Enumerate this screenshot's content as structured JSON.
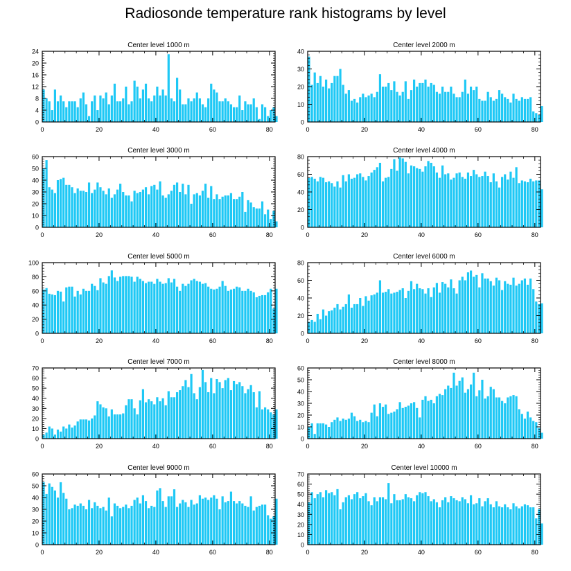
{
  "figure_title": "Radiosonde temperature rank histograms by level",
  "bar_color": "#1ec8f5",
  "chart_data": [
    {
      "type": "bar",
      "title": "Center level 1000 m",
      "xlim": [
        0,
        82
      ],
      "ylim": [
        0,
        24
      ],
      "xticks": [
        0,
        20,
        40,
        60,
        80
      ],
      "yticks": [
        0,
        4,
        8,
        12,
        16,
        20,
        24
      ],
      "values": [
        11,
        8,
        7,
        4,
        11,
        7,
        9,
        7,
        5,
        7,
        7,
        7,
        5,
        8,
        10,
        6,
        2,
        7,
        9,
        4,
        9,
        8,
        10,
        6,
        9,
        13,
        7,
        7,
        8,
        12,
        6,
        7,
        14,
        12,
        8,
        11,
        13,
        8,
        7,
        9,
        12,
        9,
        11,
        9,
        23,
        8,
        7,
        15,
        11,
        6,
        6,
        8,
        7,
        8,
        10,
        8,
        6,
        5,
        8,
        13,
        11,
        10,
        7,
        7,
        8,
        7,
        6,
        5,
        5,
        9,
        4,
        7,
        6,
        6,
        8,
        5,
        1,
        6,
        5,
        2,
        4,
        5,
        2
      ]
    },
    {
      "type": "bar",
      "title": "Center level 2000 m",
      "xlim": [
        0,
        82
      ],
      "ylim": [
        0,
        40
      ],
      "xticks": [
        0,
        20,
        40,
        60,
        80
      ],
      "yticks": [
        0,
        10,
        20,
        30,
        40
      ],
      "values": [
        37,
        21,
        28,
        22,
        26,
        20,
        24,
        19,
        22,
        26,
        26,
        30,
        21,
        16,
        18,
        12,
        13,
        11,
        14,
        16,
        14,
        15,
        16,
        14,
        17,
        27,
        20,
        20,
        22,
        18,
        23,
        17,
        15,
        17,
        23,
        13,
        18,
        24,
        20,
        22,
        22,
        24,
        20,
        22,
        21,
        17,
        16,
        20,
        17,
        17,
        20,
        16,
        14,
        14,
        17,
        24,
        16,
        20,
        18,
        20,
        13,
        12,
        12,
        17,
        14,
        12,
        13,
        18,
        16,
        14,
        13,
        11,
        16,
        13,
        12,
        14,
        13,
        13,
        14,
        6,
        5,
        4,
        9
      ]
    },
    {
      "type": "bar",
      "title": "Center level 3000 m",
      "xlim": [
        0,
        82
      ],
      "ylim": [
        0,
        60
      ],
      "xticks": [
        0,
        20,
        40,
        60,
        80
      ],
      "yticks": [
        0,
        10,
        20,
        30,
        40,
        50,
        60
      ],
      "values": [
        50,
        57,
        34,
        32,
        29,
        40,
        41,
        42,
        36,
        36,
        34,
        29,
        33,
        31,
        31,
        30,
        38,
        29,
        32,
        38,
        34,
        31,
        28,
        33,
        25,
        28,
        32,
        37,
        30,
        27,
        27,
        22,
        31,
        29,
        30,
        32,
        34,
        28,
        35,
        36,
        32,
        39,
        27,
        25,
        28,
        31,
        36,
        38,
        30,
        37,
        28,
        36,
        20,
        28,
        29,
        27,
        31,
        37,
        25,
        35,
        24,
        28,
        24,
        26,
        27,
        27,
        29,
        24,
        24,
        26,
        30,
        13,
        23,
        21,
        17,
        16,
        16,
        22,
        11,
        15,
        7,
        14,
        5
      ]
    },
    {
      "type": "bar",
      "title": "Center level 4000 m",
      "xlim": [
        0,
        82
      ],
      "ylim": [
        0,
        80
      ],
      "xticks": [
        0,
        20,
        40,
        60,
        80
      ],
      "yticks": [
        0,
        20,
        40,
        60,
        80
      ],
      "values": [
        56,
        57,
        55,
        52,
        57,
        56,
        51,
        52,
        50,
        46,
        52,
        45,
        59,
        52,
        60,
        55,
        56,
        60,
        61,
        57,
        53,
        58,
        62,
        65,
        68,
        73,
        52,
        56,
        57,
        66,
        77,
        64,
        79,
        78,
        74,
        61,
        70,
        69,
        67,
        66,
        63,
        69,
        75,
        73,
        69,
        62,
        56,
        70,
        60,
        61,
        54,
        56,
        61,
        62,
        57,
        55,
        62,
        58,
        65,
        60,
        57,
        58,
        63,
        58,
        51,
        61,
        52,
        45,
        57,
        60,
        54,
        63,
        56,
        68,
        50,
        53,
        52,
        51,
        55,
        52,
        53,
        53,
        43
      ]
    },
    {
      "type": "bar",
      "title": "Center level 5000 m",
      "xlim": [
        0,
        82
      ],
      "ylim": [
        0,
        100
      ],
      "xticks": [
        0,
        20,
        40,
        60,
        80
      ],
      "yticks": [
        0,
        20,
        40,
        60,
        80,
        100
      ],
      "values": [
        62,
        64,
        56,
        55,
        54,
        60,
        59,
        45,
        65,
        66,
        66,
        52,
        60,
        55,
        63,
        60,
        60,
        70,
        67,
        61,
        78,
        72,
        70,
        81,
        89,
        79,
        74,
        80,
        81,
        81,
        81,
        80,
        73,
        80,
        77,
        74,
        71,
        73,
        73,
        70,
        77,
        73,
        70,
        71,
        78,
        72,
        77,
        66,
        60,
        70,
        67,
        70,
        75,
        77,
        74,
        73,
        70,
        71,
        66,
        63,
        62,
        63,
        66,
        74,
        67,
        60,
        62,
        63,
        66,
        65,
        60,
        60,
        63,
        60,
        58,
        51,
        53,
        54,
        54,
        58,
        63,
        35,
        63
      ]
    },
    {
      "type": "bar",
      "title": "Center level 6000 m",
      "xlim": [
        0,
        82
      ],
      "ylim": [
        0,
        80
      ],
      "xticks": [
        0,
        20,
        40,
        60,
        80
      ],
      "yticks": [
        0,
        20,
        40,
        60,
        80
      ],
      "values": [
        13,
        15,
        13,
        22,
        16,
        27,
        20,
        25,
        26,
        29,
        33,
        27,
        30,
        33,
        44,
        29,
        33,
        33,
        40,
        31,
        42,
        37,
        43,
        44,
        46,
        60,
        46,
        47,
        50,
        45,
        46,
        47,
        49,
        51,
        40,
        48,
        59,
        50,
        56,
        51,
        50,
        45,
        51,
        41,
        52,
        57,
        46,
        58,
        56,
        52,
        61,
        51,
        45,
        60,
        64,
        60,
        69,
        71,
        64,
        66,
        52,
        68,
        62,
        62,
        59,
        54,
        63,
        60,
        49,
        59,
        56,
        55,
        63,
        54,
        56,
        60,
        62,
        55,
        62,
        50,
        36,
        33,
        34
      ]
    },
    {
      "type": "bar",
      "title": "Center level 7000 m",
      "xlim": [
        0,
        82
      ],
      "ylim": [
        0,
        70
      ],
      "xticks": [
        0,
        20,
        40,
        60,
        80
      ],
      "yticks": [
        0,
        10,
        20,
        30,
        40,
        50,
        60,
        70
      ],
      "values": [
        4,
        6,
        12,
        10,
        4,
        9,
        7,
        12,
        10,
        14,
        11,
        13,
        17,
        19,
        19,
        19,
        18,
        20,
        23,
        37,
        34,
        31,
        30,
        22,
        29,
        24,
        24,
        24,
        25,
        33,
        39,
        39,
        30,
        24,
        38,
        49,
        36,
        39,
        37,
        34,
        41,
        37,
        40,
        33,
        47,
        41,
        41,
        46,
        48,
        52,
        58,
        51,
        64,
        45,
        39,
        51,
        68,
        56,
        46,
        60,
        45,
        59,
        56,
        50,
        58,
        60,
        48,
        57,
        54,
        56,
        52,
        45,
        49,
        53,
        46,
        31,
        47,
        29,
        31,
        29,
        26,
        24,
        29
      ]
    },
    {
      "type": "bar",
      "title": "Center level 8000 m",
      "xlim": [
        0,
        82
      ],
      "ylim": [
        0,
        60
      ],
      "xticks": [
        0,
        20,
        40,
        60,
        80
      ],
      "yticks": [
        0,
        10,
        20,
        30,
        40,
        50,
        60
      ],
      "values": [
        10,
        13,
        4,
        13,
        13,
        13,
        12,
        10,
        14,
        16,
        18,
        15,
        17,
        16,
        17,
        22,
        19,
        15,
        16,
        14,
        15,
        14,
        22,
        29,
        19,
        30,
        27,
        29,
        21,
        22,
        23,
        25,
        31,
        26,
        27,
        28,
        30,
        31,
        26,
        18,
        33,
        36,
        32,
        33,
        30,
        36,
        38,
        37,
        42,
        45,
        43,
        56,
        45,
        49,
        52,
        39,
        42,
        46,
        56,
        36,
        41,
        50,
        34,
        36,
        44,
        42,
        35,
        35,
        32,
        30,
        35,
        36,
        37,
        36,
        25,
        21,
        17,
        23,
        18,
        15,
        14,
        9,
        5
      ]
    },
    {
      "type": "bar",
      "title": "Center level 9000 m",
      "xlim": [
        0,
        82
      ],
      "ylim": [
        0,
        60
      ],
      "xticks": [
        0,
        20,
        40,
        60,
        80
      ],
      "yticks": [
        0,
        10,
        20,
        30,
        40,
        50,
        60
      ],
      "values": [
        53,
        43,
        52,
        49,
        46,
        40,
        53,
        44,
        39,
        30,
        31,
        34,
        33,
        35,
        33,
        30,
        38,
        31,
        36,
        33,
        31,
        32,
        29,
        40,
        24,
        35,
        33,
        31,
        32,
        34,
        31,
        33,
        38,
        40,
        35,
        42,
        37,
        31,
        33,
        32,
        46,
        48,
        37,
        32,
        41,
        41,
        47,
        32,
        35,
        38,
        36,
        32,
        38,
        34,
        35,
        42,
        39,
        40,
        38,
        40,
        42,
        39,
        30,
        41,
        36,
        37,
        45,
        37,
        35,
        37,
        35,
        33,
        32,
        41,
        29,
        32,
        33,
        34,
        34,
        25,
        22,
        24,
        39
      ]
    },
    {
      "type": "bar",
      "title": "Center level 10000 m",
      "xlim": [
        0,
        82
      ],
      "ylim": [
        0,
        70
      ],
      "xticks": [
        0,
        20,
        40,
        60,
        80
      ],
      "yticks": [
        0,
        10,
        20,
        30,
        40,
        50,
        60,
        70
      ],
      "values": [
        42,
        52,
        46,
        50,
        52,
        47,
        54,
        51,
        52,
        49,
        55,
        35,
        42,
        47,
        49,
        45,
        50,
        52,
        46,
        48,
        51,
        43,
        39,
        47,
        43,
        47,
        47,
        45,
        61,
        41,
        50,
        44,
        44,
        45,
        50,
        47,
        46,
        43,
        49,
        52,
        51,
        52,
        48,
        43,
        45,
        42,
        37,
        44,
        47,
        42,
        48,
        46,
        44,
        43,
        47,
        45,
        41,
        49,
        40,
        41,
        46,
        38,
        43,
        46,
        40,
        37,
        43,
        38,
        37,
        40,
        37,
        35,
        41,
        38,
        36,
        38,
        40,
        39,
        37,
        37,
        26,
        35,
        21
      ]
    }
  ]
}
